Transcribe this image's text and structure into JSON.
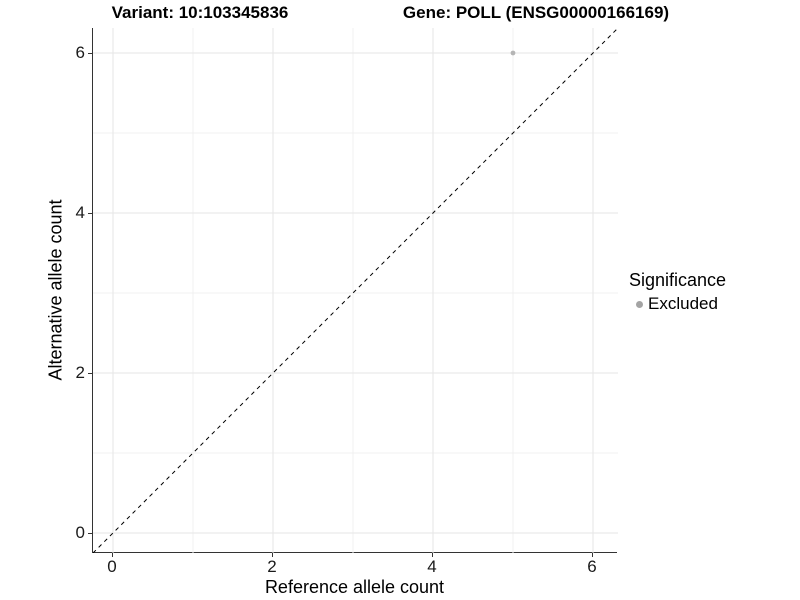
{
  "colors": {
    "background": "#ffffff",
    "grid_major": "#e6e6e6",
    "grid_minor": "#f0f0f0",
    "axis_line": "#333333",
    "text": "#000000"
  },
  "chart_data": {
    "type": "scatter",
    "title_left": "Variant: 10:103345836",
    "title_right": "Gene: POLL (ENSG00000166169)",
    "xlabel": "Reference allele count",
    "ylabel": "Alternative allele count",
    "xlim": [
      -0.25,
      6.3125
    ],
    "ylim": [
      -0.25,
      6.3125
    ],
    "x_ticks": [
      0,
      2,
      4,
      6
    ],
    "y_ticks": [
      0,
      2,
      4,
      6
    ],
    "x_minor_ticks": [
      1,
      3,
      5
    ],
    "y_minor_ticks": [
      1,
      3,
      5
    ],
    "grid": true,
    "series": [
      {
        "name": "Excluded",
        "color": "#b5b5b5",
        "point_radius": 2.4,
        "points": [
          {
            "x": 5,
            "y": 6
          }
        ]
      }
    ],
    "diagonal_line": {
      "x1": -0.25,
      "y1": -0.25,
      "x2": 6.3125,
      "y2": 6.3125,
      "style": "dashed",
      "color": "#000000",
      "width": 1
    },
    "legend": {
      "title": "Significance",
      "position": "right",
      "items": [
        {
          "label": "Excluded",
          "color": "#a4a4a4"
        }
      ]
    }
  }
}
